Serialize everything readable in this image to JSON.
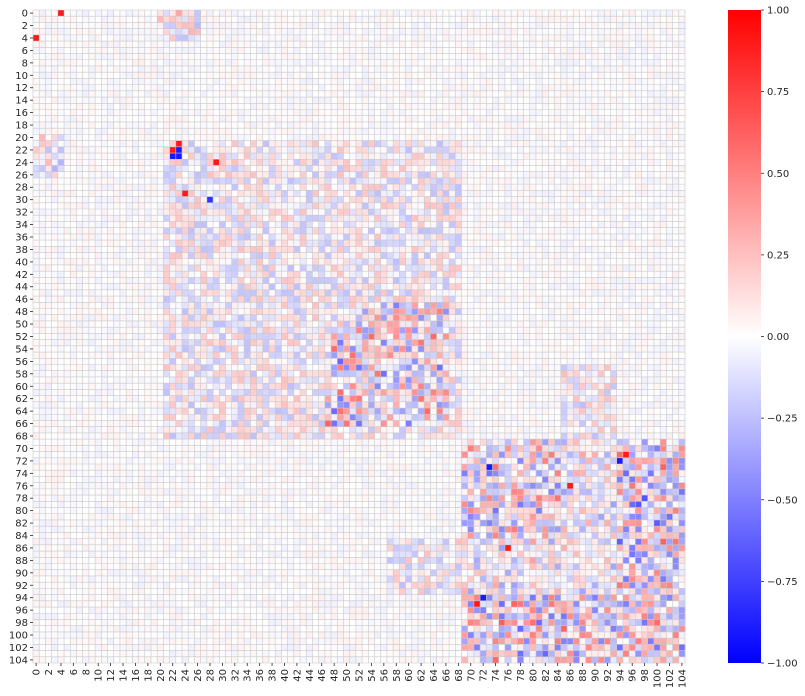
{
  "chart_data": {
    "type": "heatmap",
    "title": "",
    "xlabel": "",
    "ylabel": "",
    "n": 105,
    "row_labels": [
      "0",
      "2",
      "4",
      "6",
      "8",
      "10",
      "12",
      "14",
      "16",
      "18",
      "20",
      "22",
      "24",
      "26",
      "28",
      "30",
      "32",
      "34",
      "36",
      "38",
      "40",
      "42",
      "44",
      "46",
      "48",
      "50",
      "52",
      "54",
      "56",
      "58",
      "60",
      "62",
      "64",
      "66",
      "68",
      "70",
      "72",
      "74",
      "76",
      "78",
      "80",
      "82",
      "84",
      "86",
      "88",
      "90",
      "92",
      "94",
      "96",
      "98",
      "100",
      "102",
      "104"
    ],
    "col_labels": [
      "0",
      "2",
      "4",
      "6",
      "8",
      "10",
      "12",
      "14",
      "16",
      "18",
      "20",
      "22",
      "24",
      "26",
      "28",
      "30",
      "32",
      "34",
      "36",
      "38",
      "40",
      "42",
      "44",
      "46",
      "48",
      "50",
      "52",
      "54",
      "56",
      "58",
      "60",
      "62",
      "64",
      "66",
      "68",
      "70",
      "72",
      "74",
      "76",
      "78",
      "80",
      "82",
      "84",
      "86",
      "88",
      "90",
      "92",
      "94",
      "96",
      "98",
      "100",
      "102",
      "104"
    ],
    "colorbar": {
      "min": -1.0,
      "max": 1.0,
      "colormap": "bwr",
      "ticks": [
        "1.00",
        "0.75",
        "0.50",
        "0.25",
        "0.00",
        "−0.25",
        "−0.50",
        "−0.75",
        "−1.00"
      ],
      "tick_values": [
        1.0,
        0.75,
        0.5,
        0.25,
        0.0,
        -0.25,
        -0.5,
        -0.75,
        -1.0
      ]
    },
    "colors": {
      "low": "#0000ff",
      "mid": "#ffffff",
      "high": "#ff0000",
      "gridline": "#c8c8c8"
    },
    "blocks": [
      {
        "rows": [
          0,
          4
        ],
        "cols": [
          20,
          26
        ],
        "strength": 0.35
      },
      {
        "rows": [
          20,
          26
        ],
        "cols": [
          0,
          4
        ],
        "strength": 0.3
      },
      {
        "rows": [
          21,
          68
        ],
        "cols": [
          21,
          68
        ],
        "strength": 0.25
      },
      {
        "rows": [
          52,
          66
        ],
        "cols": [
          47,
          66
        ],
        "strength": 0.55
      },
      {
        "rows": [
          47,
          66
        ],
        "cols": [
          52,
          66
        ],
        "strength": 0.45
      },
      {
        "rows": [
          70,
          104
        ],
        "cols": [
          69,
          85
        ],
        "strength": 0.5
      },
      {
        "rows": [
          69,
          85
        ],
        "cols": [
          70,
          104
        ],
        "strength": 0.45
      },
      {
        "rows": [
          70,
          104
        ],
        "cols": [
          93,
          104
        ],
        "strength": 0.55
      },
      {
        "rows": [
          93,
          104
        ],
        "cols": [
          69,
          104
        ],
        "strength": 0.5
      },
      {
        "rows": [
          85,
          93
        ],
        "cols": [
          57,
          92
        ],
        "strength": 0.25
      },
      {
        "rows": [
          57,
          92
        ],
        "cols": [
          85,
          93
        ],
        "strength": 0.25
      }
    ],
    "strong_cells": [
      {
        "row": 0,
        "col": 4,
        "value": 0.9
      },
      {
        "row": 4,
        "col": 0,
        "value": 0.9
      },
      {
        "row": 22,
        "col": 22,
        "value": 0.9
      },
      {
        "row": 22,
        "col": 23,
        "value": -0.9
      },
      {
        "row": 23,
        "col": 22,
        "value": -0.9
      },
      {
        "row": 23,
        "col": 23,
        "value": -0.9
      },
      {
        "row": 21,
        "col": 23,
        "value": 0.9
      },
      {
        "row": 24,
        "col": 29,
        "value": 0.9
      },
      {
        "row": 29,
        "col": 24,
        "value": 0.9
      },
      {
        "row": 30,
        "col": 28,
        "value": -0.8
      },
      {
        "row": 76,
        "col": 86,
        "value": 0.9
      },
      {
        "row": 86,
        "col": 76,
        "value": 0.9
      },
      {
        "row": 71,
        "col": 95,
        "value": 0.9
      },
      {
        "row": 95,
        "col": 71,
        "value": 0.9
      },
      {
        "row": 73,
        "col": 73,
        "value": -0.9
      },
      {
        "row": 72,
        "col": 94,
        "value": -0.9
      },
      {
        "row": 94,
        "col": 72,
        "value": -0.9
      }
    ]
  }
}
